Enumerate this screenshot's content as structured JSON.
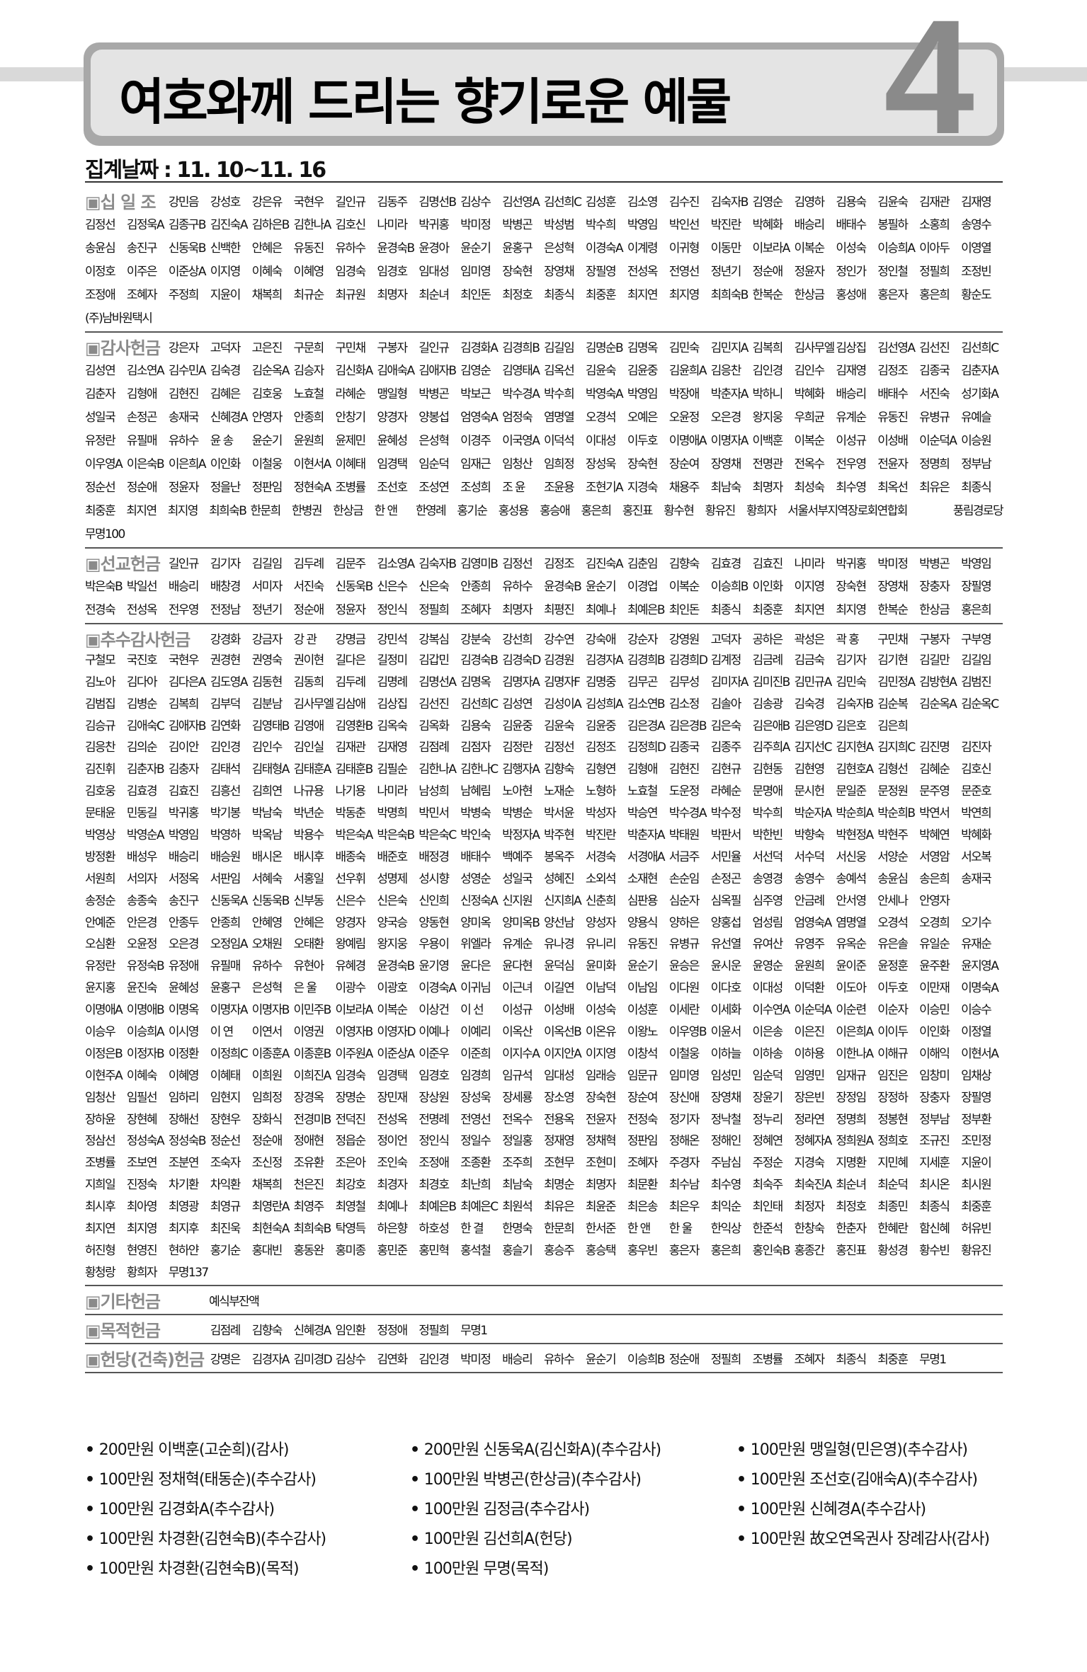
{
  "header": {
    "title": "여호와께 드리는 향기로운 예물",
    "page_number": "4",
    "date": "집계날짜 : 11. 10~11. 16"
  },
  "sections": [
    {
      "id": "s-sipilio",
      "label": "▣십 일 조",
      "label_span": 2,
      "rows": [
        [
          "강민음",
          "강성호",
          "강은유",
          "국현우",
          "길인규",
          "김동주",
          "김명선B",
          "김상수",
          "김선영A",
          "김선희C",
          "김성훈",
          "김소영",
          "김수진",
          "김숙자B",
          "김영순",
          "김영하",
          "김용숙",
          "김윤숙",
          "김재관",
          "김재영"
        ],
        [
          "김정선",
          "김정욱A",
          "김종구B",
          "김진숙A",
          "김하은B",
          "김한나A",
          "김호신",
          "나미라",
          "박귀홍",
          "박미정",
          "박병곤",
          "박성범",
          "박수희",
          "박영임",
          "박인선",
          "박진란",
          "박혜화",
          "배승리",
          "배태수",
          "봉필하",
          "소홍희",
          "송영수"
        ],
        [
          "송윤심",
          "송진구",
          "신동욱B",
          "신백한",
          "안혜은",
          "유동진",
          "유하수",
          "윤경숙B",
          "윤경아",
          "윤순기",
          "윤홍구",
          "은성혁",
          "이경숙A",
          "이계령",
          "이귀형",
          "이동만",
          "이보라A",
          "이복순",
          "이성숙",
          "이승희A",
          "이아두",
          "이영열"
        ],
        [
          "이정호",
          "이주은",
          "이준상A",
          "이지영",
          "이혜숙",
          "이혜영",
          "임경숙",
          "임경호",
          "임대성",
          "임미영",
          "장숙현",
          "장영채",
          "장필영",
          "전성옥",
          "전영선",
          "정년기",
          "정순애",
          "정윤자",
          "정인가",
          "정인철",
          "정필희",
          "조정빈"
        ],
        [
          "조정애",
          "조혜자",
          "주정희",
          "지윤이",
          "채복희",
          "최규순",
          "최규원",
          "최명자",
          "최순녀",
          "최인돈",
          "최정호",
          "최종식",
          "최중훈",
          "최지연",
          "최지영",
          "최희숙B",
          "한복순",
          "한상금",
          "홍성애",
          "홍은자",
          "홍은희",
          "황순도"
        ],
        [
          "(주)남바원택시"
        ]
      ]
    },
    {
      "id": "s-gamsa",
      "label": "▣감사헌금",
      "label_span": 2,
      "rows": [
        [
          "강은자",
          "고덕자",
          "고은진",
          "구문희",
          "구민채",
          "구봉자",
          "길인규",
          "김경화A",
          "김경희B",
          "김길임",
          "김명순B",
          "김명옥",
          "김민숙",
          "김민지A",
          "김복희",
          "김사무엘",
          "김상집",
          "김선영A",
          "김선진",
          "김선희C"
        ],
        [
          "김성연",
          "김소연A",
          "김수민A",
          "김숙경",
          "김순옥A",
          "김승자",
          "김신화A",
          "김애숙A",
          "김애자B",
          "김영순",
          "김영태A",
          "김옥선",
          "김윤숙",
          "김윤중",
          "김윤희A",
          "김응찬",
          "김인경",
          "김인수",
          "김재영",
          "김정조",
          "김종국",
          "김춘자A"
        ],
        [
          "김춘자",
          "김형애",
          "김현진",
          "김혜은",
          "김호웅",
          "노효철",
          "라혜순",
          "맹일형",
          "박병곤",
          "박보근",
          "박수경A",
          "박수희",
          "박영숙A",
          "박영임",
          "박장애",
          "박춘자A",
          "박하니",
          "박혜화",
          "배승리",
          "배태수",
          "서진숙",
          "성기화A"
        ],
        [
          "성일국",
          "손정곤",
          "송재국",
          "신혜경A",
          "안영자",
          "안종희",
          "안창기",
          "양경자",
          "양봉섭",
          "엄영숙A",
          "엄정숙",
          "염명열",
          "오경석",
          "오예은",
          "오윤정",
          "오은경",
          "왕지웅",
          "우희균",
          "유계순",
          "유동진",
          "유병규",
          "유예슬"
        ],
        [
          "유정란",
          "유필매",
          "유하수",
          "윤 송",
          "윤순기",
          "윤원희",
          "윤제민",
          "윤혜성",
          "은성혁",
          "이경주",
          "이국영A",
          "이덕석",
          "이대성",
          "이두호",
          "이명애A",
          "이명자A",
          "이백훈",
          "이복순",
          "이성규",
          "이성배",
          "이순덕A",
          "이승원"
        ],
        [
          "이우영A",
          "이은숙B",
          "이은희A",
          "이인화",
          "이철웅",
          "이현서A",
          "이혜태",
          "임경택",
          "임순덕",
          "임재근",
          "임청산",
          "임희정",
          "장성욱",
          "장숙현",
          "장순여",
          "장영채",
          "전명관",
          "전옥수",
          "전우영",
          "전윤자",
          "정명희",
          "정부남"
        ],
        [
          "정순선",
          "정순애",
          "정윤자",
          "정을난",
          "정판임",
          "정현숙A",
          "조병률",
          "조선호",
          "조성연",
          "조성희",
          "조 윤",
          "조윤용",
          "조현기A",
          "지경숙",
          "채용주",
          "최남숙",
          "최명자",
          "최성숙",
          "최수영",
          "최옥선",
          "최유은",
          "최종식"
        ],
        [
          "최중훈",
          "최지연",
          "최지영",
          "최희숙B",
          "한문희",
          "한병권",
          "한상금",
          "한 앤",
          "한영례",
          "홍기순",
          "홍성용",
          "홍승애",
          "홍은희",
          "홍진표",
          "황수현",
          "황유진",
          "황희자",
          "서울서부지역장로회연합회",
          "풍림경로당"
        ],
        [
          "무명100"
        ]
      ]
    },
    {
      "id": "s-seongyo",
      "label": "▣선교헌금",
      "label_span": 2,
      "rows": [
        [
          "길인규",
          "김기자",
          "김길임",
          "김두례",
          "김문주",
          "김소영A",
          "김숙자B",
          "김영미B",
          "김정선",
          "김정조",
          "김진숙A",
          "김춘임",
          "김향숙",
          "김효경",
          "김효진",
          "나미라",
          "박귀홍",
          "박미정",
          "박병곤",
          "박영임"
        ],
        [
          "박은숙B",
          "박일선",
          "배승리",
          "배창경",
          "서미자",
          "서진숙",
          "신동욱B",
          "신은수",
          "신은숙",
          "안종희",
          "유하수",
          "윤경숙B",
          "윤순기",
          "이경업",
          "이복순",
          "이승희B",
          "이인화",
          "이지영",
          "장숙현",
          "장영채",
          "장충자",
          "장필영"
        ],
        [
          "전경숙",
          "전성옥",
          "전우영",
          "전정남",
          "정년기",
          "정순애",
          "정윤자",
          "정인식",
          "정필희",
          "조혜자",
          "최명자",
          "최평진",
          "최예나",
          "최예은B",
          "최인돈",
          "최종식",
          "최중훈",
          "최지연",
          "최지영",
          "한복순",
          "한상금",
          "홍은희"
        ]
      ]
    },
    {
      "id": "s-chusu",
      "label": "▣추수감사헌금",
      "label_span": 3,
      "rows": [
        [
          "강경화",
          "강금자",
          "강 관",
          "강명금",
          "강민석",
          "강복심",
          "강분숙",
          "강선희",
          "강수연",
          "강숙애",
          "강순자",
          "강영원",
          "고덕자",
          "공하은",
          "곽성은",
          "곽 홍",
          "구민채",
          "구봉자",
          "구부영"
        ],
        [
          "구철모",
          "국진호",
          "국현우",
          "권경현",
          "권영숙",
          "권이현",
          "길다은",
          "길정미",
          "김갑민",
          "김경숙B",
          "김경숙D",
          "김경원",
          "김경자A",
          "김경희B",
          "김경희D",
          "김계정",
          "김금례",
          "김금숙",
          "김기자",
          "김기현",
          "김길만",
          "김길임"
        ],
        [
          "김노아",
          "김다아",
          "김다은A",
          "김도영A",
          "김동현",
          "김동희",
          "김두례",
          "김명례",
          "김명선A",
          "김명옥",
          "김명자A",
          "김명자F",
          "김명중",
          "김무곤",
          "김무성",
          "김미자A",
          "김미진B",
          "김민규A",
          "김민숙",
          "김민정A",
          "김방현A",
          "김범진"
        ],
        [
          "김범집",
          "김병순",
          "김복희",
          "김부덕",
          "김분남",
          "김사무엘",
          "김삼애",
          "김상집",
          "김선진",
          "김선희C",
          "김성연",
          "김성이A",
          "김성희A",
          "김소연B",
          "김소정",
          "김솔아",
          "김송광",
          "김숙경",
          "김숙자B",
          "김순복",
          "김순옥A",
          "김순옥C"
        ],
        [
          "김승규",
          "김애숙C",
          "김애자B",
          "김연화",
          "김영태B",
          "김영애",
          "김영환B",
          "김옥숙",
          "김옥화",
          "김용숙",
          "김윤중",
          "김윤숙",
          "김윤중",
          "김은경A",
          "김은경B",
          "김은숙",
          "김은애B",
          "김은영D",
          "김은호",
          "김은희"
        ],
        [
          "김응찬",
          "김의순",
          "김이안",
          "김인경",
          "김인수",
          "김인실",
          "김재관",
          "김재영",
          "김점례",
          "김점자",
          "김정란",
          "김정선",
          "김정조",
          "김정희D",
          "김종국",
          "김종주",
          "김주희A",
          "김지선C",
          "김지현A",
          "김지희C",
          "김진명",
          "김진자"
        ],
        [
          "김진휘",
          "김춘자B",
          "김충자",
          "김태석",
          "김태형A",
          "김태훈A",
          "김태훈B",
          "김필순",
          "김한나A",
          "김한나C",
          "김행자A",
          "김향숙",
          "김형연",
          "김형애",
          "김현진",
          "김현규",
          "김현동",
          "김현영",
          "김현호A",
          "김형선",
          "김혜순",
          "김호신"
        ],
        [
          "김호웅",
          "김효경",
          "김효진",
          "김흥선",
          "김희연",
          "나규용",
          "나기용",
          "나미라",
          "남성희",
          "남혜림",
          "노아현",
          "노재순",
          "노형하",
          "노효철",
          "도운정",
          "라혜순",
          "문명애",
          "문시헌",
          "문일준",
          "문정원",
          "문주영",
          "문준호"
        ],
        [
          "문태윤",
          "민동길",
          "박귀홍",
          "박기봉",
          "박남숙",
          "박년순",
          "박동춘",
          "박명희",
          "박민서",
          "박병숙",
          "박병순",
          "박서윤",
          "박성자",
          "박승연",
          "박수경A",
          "박수정",
          "박수희",
          "박순자A",
          "박순희A",
          "박순희B",
          "박연서",
          "박연희"
        ],
        [
          "박영상",
          "박영순A",
          "박영임",
          "박영하",
          "박옥남",
          "박용수",
          "박은숙A",
          "박은숙B",
          "박은숙C",
          "박인숙",
          "박정자A",
          "박주현",
          "박진란",
          "박춘자A",
          "박태원",
          "박판서",
          "박한빈",
          "박향숙",
          "박현정A",
          "박현주",
          "박혜연",
          "박혜화"
        ],
        [
          "방정환",
          "배성우",
          "배승리",
          "배승원",
          "배시온",
          "배시후",
          "배종숙",
          "배준호",
          "배정경",
          "배태수",
          "백예주",
          "봉옥주",
          "서경숙",
          "서경애A",
          "서금주",
          "서민율",
          "서선덕",
          "서수덕",
          "서신웅",
          "서양순",
          "서영암",
          "서오복"
        ],
        [
          "서원희",
          "서의자",
          "서정옥",
          "서판임",
          "서혜숙",
          "서홍일",
          "선우휘",
          "성명제",
          "성시향",
          "성영순",
          "성일국",
          "성혜진",
          "소외석",
          "소재현",
          "손순임",
          "손정곤",
          "송영경",
          "송영수",
          "송예석",
          "송윤심",
          "송은희",
          "송재국"
        ],
        [
          "송정순",
          "송종숙",
          "송진구",
          "신동욱A",
          "신동욱B",
          "신부동",
          "신은수",
          "신은숙",
          "신인희",
          "신정숙A",
          "신지원",
          "신지희A",
          "신춘희",
          "심판용",
          "심순자",
          "심옥필",
          "심주영",
          "안금례",
          "안서영",
          "안세나",
          "안영자"
        ],
        [
          "안예준",
          "안은경",
          "안종두",
          "안종희",
          "안혜영",
          "안혜은",
          "양경자",
          "양국승",
          "양동현",
          "양미옥",
          "양미옥B",
          "양선남",
          "양성자",
          "양용식",
          "양하은",
          "양홍섭",
          "엄성림",
          "엄영숙A",
          "염명열",
          "오경석",
          "오경희",
          "오기수"
        ],
        [
          "오심환",
          "오윤정",
          "오은경",
          "오정임A",
          "오채원",
          "오태환",
          "왕예림",
          "왕지웅",
          "우용이",
          "위엘라",
          "유계순",
          "유나경",
          "유니리",
          "유동진",
          "유병규",
          "유선열",
          "유여산",
          "유영주",
          "유옥순",
          "유은솔",
          "유일순",
          "유재순"
        ],
        [
          "유정란",
          "유정숙B",
          "유정애",
          "유필매",
          "유하수",
          "유현아",
          "유혜경",
          "윤경숙B",
          "윤기영",
          "윤다은",
          "윤다현",
          "윤덕심",
          "윤미화",
          "윤순기",
          "윤승은",
          "윤시운",
          "윤영순",
          "윤원희",
          "윤이준",
          "윤정훈",
          "윤주환",
          "윤지영A"
        ],
        [
          "윤지홍",
          "윤진숙",
          "윤혜성",
          "윤홍구",
          "은성혁",
          "은 울",
          "이광수",
          "이광호",
          "이경숙A",
          "이귀님",
          "이근녀",
          "이길연",
          "이남덕",
          "이남임",
          "이다원",
          "이다호",
          "이대성",
          "이덕환",
          "이도아",
          "이두호",
          "이만재",
          "이명숙A"
        ],
        [
          "이명애A",
          "이명애B",
          "이명옥",
          "이명자A",
          "이명자B",
          "이민주B",
          "이보라A",
          "이복순",
          "이상건",
          "이 선",
          "이성규",
          "이성배",
          "이성숙",
          "이성훈",
          "이세란",
          "이세화",
          "이수연A",
          "이순덕A",
          "이순련",
          "이순자",
          "이승민",
          "이승수"
        ],
        [
          "이승우",
          "이승희A",
          "이시영",
          "이 연",
          "이연서",
          "이영권",
          "이영자B",
          "이영자D",
          "이예나",
          "이예리",
          "이옥산",
          "이옥선B",
          "이온유",
          "이왕노",
          "이우영B",
          "이윤서",
          "이은송",
          "이은진",
          "이은희A",
          "이이두",
          "이인화",
          "이정열"
        ],
        [
          "이정은B",
          "이정자B",
          "이정환",
          "이정희C",
          "이종훈A",
          "이종훈B",
          "이주원A",
          "이준상A",
          "이준우",
          "이준희",
          "이지수A",
          "이지안A",
          "이지영",
          "이창석",
          "이철웅",
          "이하늘",
          "이하송",
          "이하용",
          "이한나A",
          "이해규",
          "이해익",
          "이현서A"
        ],
        [
          "이현주A",
          "이혜숙",
          "이혜영",
          "이혜태",
          "이희원",
          "이희진A",
          "임경숙",
          "임경택",
          "임경호",
          "임경희",
          "임규석",
          "임대성",
          "임래승",
          "임문규",
          "임미영",
          "임성민",
          "임순덕",
          "임영민",
          "임재규",
          "임진은",
          "임창미",
          "임채상"
        ],
        [
          "임청산",
          "임필선",
          "임하리",
          "임현지",
          "임희정",
          "장경옥",
          "장명순",
          "장민재",
          "장상원",
          "장성욱",
          "장세룡",
          "장소영",
          "장숙현",
          "장순여",
          "장신애",
          "장영채",
          "장윤기",
          "장은빈",
          "장정임",
          "장정하",
          "장충자",
          "장필영"
        ],
        [
          "장하윤",
          "장현혜",
          "장해선",
          "장현우",
          "장화식",
          "전경미B",
          "전덕진",
          "전성옥",
          "전명례",
          "전영선",
          "전옥수",
          "전용옥",
          "전윤자",
          "전정숙",
          "정기자",
          "정낙철",
          "정누리",
          "정라연",
          "정명희",
          "정봉현",
          "정부남",
          "정부환"
        ],
        [
          "정삼선",
          "정성숙A",
          "정성숙B",
          "정순선",
          "정순애",
          "정애현",
          "정읍순",
          "정이언",
          "정인식",
          "정일수",
          "정일홍",
          "정재영",
          "정채혁",
          "정판임",
          "정해온",
          "정해인",
          "정혜연",
          "정혜자A",
          "정희원A",
          "정희호",
          "조규진",
          "조민정"
        ],
        [
          "조병률",
          "조보연",
          "조분연",
          "조숙자",
          "조신정",
          "조유환",
          "조은아",
          "조인숙",
          "조정애",
          "조종환",
          "조주희",
          "조현무",
          "조현미",
          "조혜자",
          "주경자",
          "주남심",
          "주정순",
          "지경숙",
          "지명환",
          "지민혜",
          "지세훈",
          "지윤이"
        ],
        [
          "지희일",
          "진정숙",
          "차기환",
          "차익환",
          "채복희",
          "천은진",
          "최강호",
          "최경자",
          "최경호",
          "최난희",
          "최남숙",
          "최명순",
          "최명자",
          "최문환",
          "최수남",
          "최수영",
          "최숙주",
          "최숙진A",
          "최순녀",
          "최순덕",
          "최시온",
          "최시원"
        ],
        [
          "최시후",
          "최아영",
          "최영광",
          "최영규",
          "최영란A",
          "최영주",
          "최영철",
          "최예나",
          "최예은B",
          "최예은C",
          "최원석",
          "최유은",
          "최윤준",
          "최은송",
          "최은우",
          "최익순",
          "최인태",
          "최정자",
          "최정호",
          "최종민",
          "최종식",
          "최중훈"
        ],
        [
          "최지연",
          "최지영",
          "최지후",
          "최진욱",
          "최현숙A",
          "최희숙B",
          "탁영득",
          "하은향",
          "하호성",
          "한 결",
          "한명숙",
          "한문희",
          "한서준",
          "한 앤",
          "한 울",
          "한익상",
          "한준석",
          "한창숙",
          "한춘자",
          "한혜란",
          "함신혜",
          "허유빈"
        ],
        [
          "허진형",
          "현영진",
          "현하얀",
          "홍기순",
          "홍대빈",
          "홍동완",
          "홍미종",
          "홍민준",
          "홍민혁",
          "홍석철",
          "홍슬기",
          "홍승주",
          "홍승택",
          "홍우빈",
          "홍은자",
          "홍은희",
          "홍인숙B",
          "홍종간",
          "홍진표",
          "황성경",
          "황수빈",
          "황유진"
        ],
        [
          "황청랑",
          "황희자",
          "무명137"
        ]
      ]
    },
    {
      "id": "s-gita",
      "label": "▣기타헌금",
      "label_span": 3,
      "rows": [
        [
          "예식부잔액"
        ]
      ]
    },
    {
      "id": "s-mokjeok",
      "label": "▣목적헌금",
      "label_span": 3,
      "rows": [
        [
          "김점례",
          "김향숙",
          "신혜경A",
          "임인환",
          "정정애",
          "정필희",
          "무명1"
        ]
      ]
    },
    {
      "id": "s-heondang",
      "label": "▣헌당(건축)헌금",
      "label_span": 3,
      "rows": [
        [
          "강명은",
          "김경자A",
          "김미경D",
          "김상수",
          "김연화",
          "김인경",
          "박미정",
          "배승리",
          "유하수",
          "윤순기",
          "이승희B",
          "정순애",
          "정필희",
          "조병률",
          "조혜자",
          "최종식",
          "최중훈",
          "무명1"
        ]
      ]
    }
  ],
  "special_offerings": [
    "200만원 이백훈(고순희)(감사)",
    "200만원 신동욱A(김신화A)(추수감사)",
    "100만원 맹일형(민은영)(추수감사)",
    "100만원 정채혁(태동순)(추수감사)",
    "100만원 박병곤(한상금)(추수감사)",
    "100만원 조선호(김애숙A)(추수감사)",
    "100만원 김경화A(추수감사)",
    "100만원 김정금(추수감사)",
    "100만원 신혜경A(추수감사)",
    "100만원 차경환(김현숙B)(추수감사)",
    "100만원 김선희A(헌당)",
    "100만원 故오연옥권사 장례감사(감사)",
    "100만원 차경환(김현숙B)(목적)",
    "100만원 무명(목적)"
  ],
  "colors": {
    "title_box": "#a8a8a8",
    "title_inner": "#e4e4e4",
    "label_gray": "#8a8a8a",
    "page_number": "#8a8a8a"
  }
}
